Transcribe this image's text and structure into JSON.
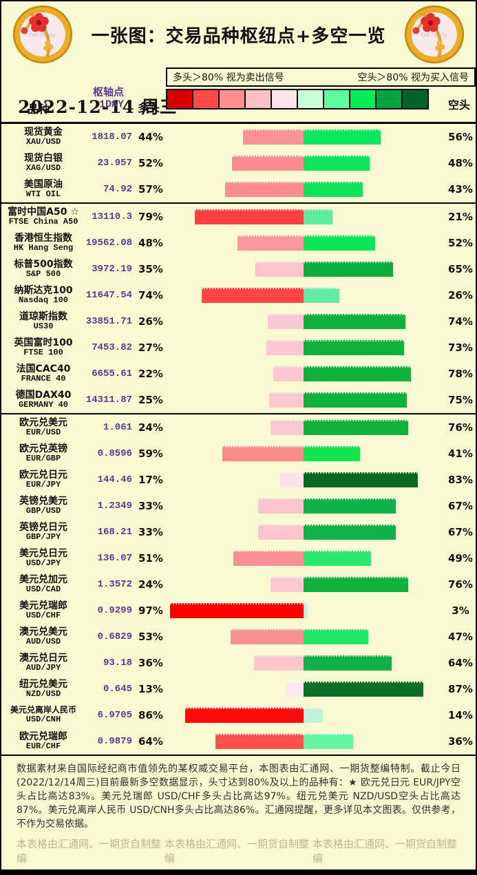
{
  "title": "一张图：交易品种枢纽点+多空一览",
  "date": "2022-12-14 周三",
  "coin_watermark": "fx678 yly",
  "legend": {
    "long_rule": "多头＞80% 视为卖出信号",
    "short_rule": "空头＞80% 视为买入信号"
  },
  "columns": {
    "instrument": "品种",
    "pivot": "枢轴点1DAY",
    "long": "多头",
    "short": "空头"
  },
  "colors": {
    "background": "#FAFAD2",
    "date_text": "#D9A21B",
    "pivot_text": "#5B3A8E",
    "watermark_text": "#BDB98D",
    "scale": [
      "#D40000",
      "#FF4A4A",
      "#FF8F8F",
      "#FFC0C4",
      "#FFE4E8",
      "#C8FFD8",
      "#5FFF9F",
      "#00EE55",
      "#00A43C",
      "#006428"
    ]
  },
  "chart_data": {
    "type": "bar",
    "subtype": "diverging-stacked-horizontal",
    "unit": "percent",
    "title": "一张图：交易品种枢纽点+多空一览",
    "series": [
      {
        "name": "多头",
        "side": "left",
        "color_family": "red"
      },
      {
        "name": "空头",
        "side": "right",
        "color_family": "green"
      }
    ],
    "xlim": [
      0,
      100
    ],
    "legend_position": "top",
    "grid": false,
    "rows": [
      {
        "name": "现货黄金",
        "code": "XAU/USD",
        "pivot": "1818.07",
        "long": 44,
        "short": 56,
        "long_color": "#FB9296",
        "short_color": "#0DE95F",
        "group": 1
      },
      {
        "name": "现货白银",
        "code": "XAG/USD",
        "pivot": "23.957",
        "long": 52,
        "short": 48,
        "long_color": "#FB8D90",
        "short_color": "#0AE55A",
        "group": 1
      },
      {
        "name": "美国原油",
        "code": "WTI OIL",
        "pivot": "74.92",
        "long": 57,
        "short": 43,
        "long_color": "#FB8D90",
        "short_color": "#0FE45A",
        "group": 1
      },
      {
        "name": "富时中国A50 ☆",
        "code": "FTSE China A50",
        "pivot": "13110.3",
        "long": 79,
        "short": 21,
        "long_color": "#FF4040",
        "short_color": "#5FEDA0",
        "group": 2
      },
      {
        "name": "香港恒生指数",
        "code": "HK Hang Seng",
        "pivot": "19562.08",
        "long": 48,
        "short": 52,
        "long_color": "#FA999D",
        "short_color": "#0DE456",
        "group": 2
      },
      {
        "name": "标普500指数",
        "code": "S&P 500",
        "pivot": "3972.19",
        "long": 35,
        "short": 65,
        "long_color": "#FFC5CD",
        "short_color": "#0CAE3E",
        "group": 2
      },
      {
        "name": "纳斯达克100",
        "code": "Nasdaq 100",
        "pivot": "11647.54",
        "long": 74,
        "short": 26,
        "long_color": "#FF4444",
        "short_color": "#63EDA4",
        "group": 2
      },
      {
        "name": "道琼斯指数",
        "code": "US30",
        "pivot": "33851.71",
        "long": 26,
        "short": 74,
        "long_color": "#FFC9D3",
        "short_color": "#0DB13C",
        "group": 2
      },
      {
        "name": "英国富时100",
        "code": "FTSE 100",
        "pivot": "7453.82",
        "long": 27,
        "short": 73,
        "long_color": "#FFC9D3",
        "short_color": "#0DB13C",
        "group": 2
      },
      {
        "name": "法国CAC40",
        "code": "FRANCE 40",
        "pivot": "6655.61",
        "long": 22,
        "short": 78,
        "long_color": "#FFC9D3",
        "short_color": "#0DB13C",
        "group": 2
      },
      {
        "name": "德国DAX40",
        "code": "GERMANY 40",
        "pivot": "14311.87",
        "long": 25,
        "short": 75,
        "long_color": "#FFC9D3",
        "short_color": "#0DB13C",
        "group": 2
      },
      {
        "name": "欧元兑美元",
        "code": "EUR/USD",
        "pivot": "1.061",
        "long": 24,
        "short": 76,
        "long_color": "#FFC9D3",
        "short_color": "#0DB13C",
        "group": 3
      },
      {
        "name": "欧元兑英镑",
        "code": "EUR/GBP",
        "pivot": "0.8596",
        "long": 59,
        "short": 41,
        "long_color": "#FB8A8A",
        "short_color": "#12E64C",
        "group": 3
      },
      {
        "name": "欧元兑日元",
        "code": "EUR/JPY",
        "pivot": "144.46",
        "long": 17,
        "short": 83,
        "long_color": "#FCE4EA",
        "short_color": "#0B6623",
        "group": 3
      },
      {
        "name": "英镑兑美元",
        "code": "GBP/USD",
        "pivot": "1.2349",
        "long": 33,
        "short": 67,
        "long_color": "#FFC5CD",
        "short_color": "#10B248",
        "group": 3
      },
      {
        "name": "英镑兑日元",
        "code": "GBP/JPY",
        "pivot": "168.21",
        "long": 33,
        "short": 67,
        "long_color": "#FFC5CD",
        "short_color": "#10B248",
        "group": 3
      },
      {
        "name": "美元兑日元",
        "code": "USD/JPY",
        "pivot": "136.07",
        "long": 51,
        "short": 49,
        "long_color": "#FA9094",
        "short_color": "#2BEA70",
        "group": 3
      },
      {
        "name": "美元兑加元",
        "code": "USD/CAD",
        "pivot": "1.3572",
        "long": 24,
        "short": 76,
        "long_color": "#FFC9D3",
        "short_color": "#0DB13C",
        "group": 3
      },
      {
        "name": "美元兑瑞郎",
        "code": "USD/CHF",
        "pivot": "0.9299",
        "long": 97,
        "short": 3,
        "long_color": "#FF0000",
        "short_color": "#C4F4DC",
        "group": 3
      },
      {
        "name": "澳元兑美元",
        "code": "AUD/USD",
        "pivot": "0.6829",
        "long": 53,
        "short": 47,
        "long_color": "#FA9094",
        "short_color": "#1FE765",
        "group": 3
      },
      {
        "name": "澳元兑日元",
        "code": "AUD/JPY",
        "pivot": "93.18",
        "long": 36,
        "short": 64,
        "long_color": "#FFC5CD",
        "short_color": "#10B248",
        "group": 3
      },
      {
        "name": "纽元兑美元",
        "code": "NZD/USD",
        "pivot": "0.645",
        "long": 13,
        "short": 87,
        "long_color": "#FEE9F0",
        "short_color": "#0C6F28",
        "group": 3
      },
      {
        "name": "美元兑离岸人民币",
        "code": "USD/CNH",
        "pivot": "6.9705",
        "long": 86,
        "short": 14,
        "long_color": "#FF0A0A",
        "short_color": "#BEF4D8",
        "group": 3
      },
      {
        "name": "欧元兑瑞郎",
        "code": "EUR/CHF",
        "pivot": "0.9879",
        "long": 64,
        "short": 36,
        "long_color": "#FF4E4E",
        "short_color": "#63F5A3",
        "group": 3
      }
    ]
  },
  "footer": {
    "note": "数据素材来自国际经纪商市值领先的某权威交易平台，本图表由汇通网、一期货整编特制。截止今日(2022/12/14周三)目前最新多空数据显示，头寸达到80%及以上的品种有：★ 欧元兑日元 EUR/JPY空头占比高达83%。美元兑瑞郎 USD/CHF多头占比高达97%。纽元兑美元 NZD/USD空头占比高达87%。美元兑离岸人民币 USD/CNH多头占比高达86%。汇通网提醒，更多详见本文图表。仅供参考，不作为交易依据。",
    "watermarks": [
      "本表格由汇通网、一期货自制整编",
      "本表格由汇通网、一期货自制整编",
      "本表格由汇通网、一期货自制整编"
    ]
  }
}
